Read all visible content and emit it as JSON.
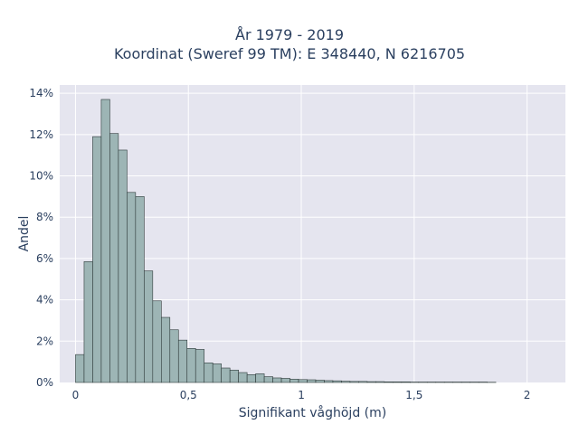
{
  "chart_data": {
    "type": "bar",
    "title": "År 1979 - 2019",
    "subtitle": "Koordinat (Sweref 99 TM): E 348440, N 6216705",
    "xlabel": "Signifikant våghöjd (m)",
    "ylabel": "Andel",
    "xlim": [
      -0.07,
      2.17
    ],
    "ylim": [
      0,
      14.4
    ],
    "x_ticks": [
      {
        "value": 0,
        "label": "0"
      },
      {
        "value": 0.5,
        "label": "0,5"
      },
      {
        "value": 1,
        "label": "1"
      },
      {
        "value": 1.5,
        "label": "1,5"
      },
      {
        "value": 2,
        "label": "2"
      }
    ],
    "y_ticks": [
      {
        "value": 0,
        "label": "0%"
      },
      {
        "value": 2,
        "label": "2%"
      },
      {
        "value": 4,
        "label": "4%"
      },
      {
        "value": 6,
        "label": "6%"
      },
      {
        "value": 8,
        "label": "8%"
      },
      {
        "value": 10,
        "label": "10%"
      },
      {
        "value": 12,
        "label": "12%"
      },
      {
        "value": 14,
        "label": "14%"
      }
    ],
    "bin_width": 0.038,
    "bin_start": 0,
    "values": [
      1.35,
      5.85,
      11.9,
      13.7,
      12.05,
      11.25,
      9.2,
      9.0,
      5.4,
      3.95,
      3.15,
      2.55,
      2.05,
      1.65,
      1.6,
      0.95,
      0.9,
      0.7,
      0.6,
      0.48,
      0.38,
      0.42,
      0.28,
      0.22,
      0.2,
      0.16,
      0.14,
      0.13,
      0.11,
      0.09,
      0.08,
      0.06,
      0.05,
      0.05,
      0.04,
      0.04,
      0.03,
      0.03,
      0.03,
      0.02,
      0.02,
      0.02,
      0.02,
      0.02,
      0.02,
      0.02,
      0.02,
      0.02,
      0.01
    ],
    "grid": true,
    "colors": {
      "plot_background": "#e5e5ef",
      "grid": "#ffffff",
      "bar_fill": "#9db5b5",
      "bar_stroke": "#2e3a3a"
    }
  }
}
